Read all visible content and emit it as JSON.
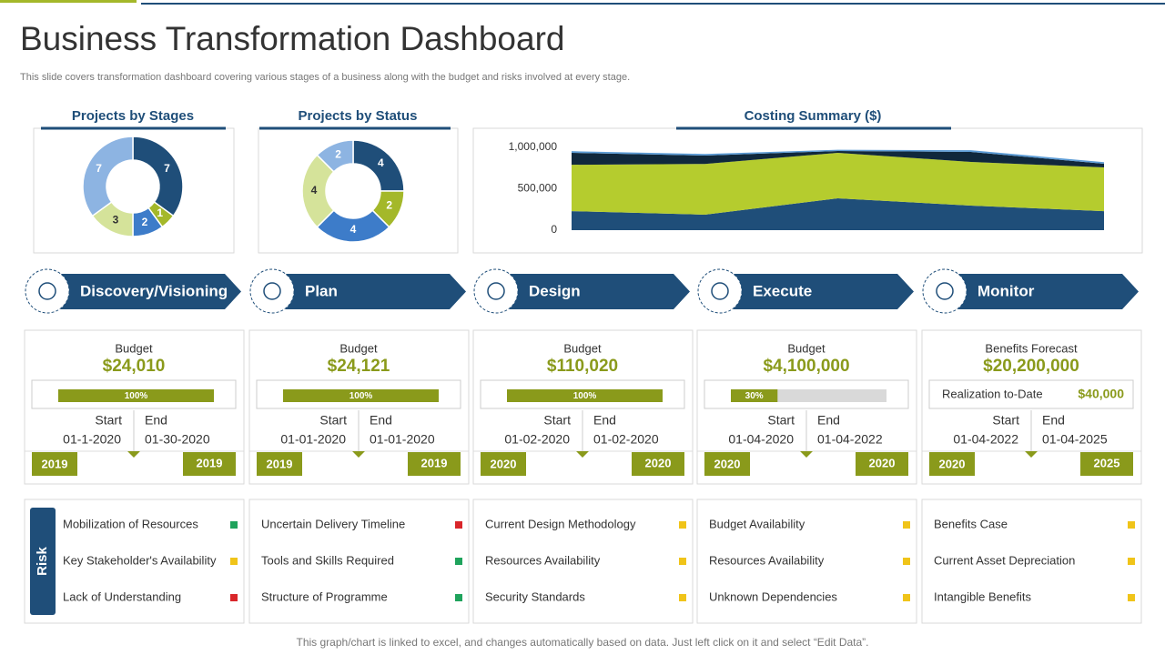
{
  "header": {
    "title": "Business Transformation Dashboard",
    "subtitle": "This slide covers transformation dashboard covering various stages of a business along with the budget and risks involved at every  stage."
  },
  "chart_data": [
    {
      "type": "donut",
      "title": "Projects by Stages",
      "values": [
        7,
        1,
        2,
        3,
        7
      ],
      "colors": [
        "#1f4e79",
        "#a4b82a",
        "#3d7cc9",
        "#d5e39a",
        "#8db4e2"
      ]
    },
    {
      "type": "donut",
      "title": "Projects by Status",
      "values": [
        4,
        2,
        4,
        4,
        2
      ],
      "colors": [
        "#1f4e79",
        "#a4b82a",
        "#3d7cc9",
        "#d5e39a",
        "#8db4e2"
      ]
    },
    {
      "type": "area",
      "title": "Costing Summary ($)",
      "stacked": true,
      "ylim": [
        0,
        1000000
      ],
      "yticks": [
        0,
        {
          "value": 500000,
          "label": "500,000"
        },
        {
          "value": 1000000,
          "label": "1,000,000"
        }
      ],
      "series": [
        {
          "color": "#1f4e79",
          "values": [
            230000,
            187000,
            385000,
            297000,
            230000
          ]
        },
        {
          "color": "#b5cc2e",
          "values": [
            560000,
            613000,
            549000,
            527000,
            528000
          ]
        },
        {
          "color": "#10283c",
          "values": [
            144000,
            101000,
            22000,
            121000,
            44000
          ]
        },
        {
          "color": "#5b9bd5",
          "values": [
            20000,
            20000,
            15000,
            20000,
            20000
          ]
        }
      ]
    }
  ],
  "stages": [
    {
      "name": "Discovery/Visioning",
      "budget_label": "Budget",
      "budget": "$24,010",
      "progress": 100,
      "progress_label": "100%",
      "start_label": "Start",
      "end_label": "End",
      "start": "01-1-2020",
      "end": "01-30-2020",
      "start_year": "2019",
      "end_year": "2019"
    },
    {
      "name": "Plan",
      "budget_label": "Budget",
      "budget": "$24,121",
      "progress": 100,
      "progress_label": "100%",
      "start_label": "Start",
      "end_label": "End",
      "start": "01-01-2020",
      "end": "01-01-2020",
      "start_year": "2019",
      "end_year": "2019"
    },
    {
      "name": "Design",
      "budget_label": "Budget",
      "budget": "$110,020",
      "progress": 100,
      "progress_label": "100%",
      "start_label": "Start",
      "end_label": "End",
      "start": "01-02-2020",
      "end": "01-02-2020",
      "start_year": "2020",
      "end_year": "2020"
    },
    {
      "name": "Execute",
      "budget_label": "Budget",
      "budget": "$4,100,000",
      "progress": 30,
      "progress_label": "30%",
      "start_label": "Start",
      "end_label": "End",
      "start": "01-04-2020",
      "end": "01-04-2022",
      "start_year": "2020",
      "end_year": "2020"
    },
    {
      "name": "Monitor",
      "budget_label": "Benefits Forecast",
      "budget": "$20,200,000",
      "realization_label": "Realization to-Date",
      "realization": "$40,000",
      "start_label": "Start",
      "end_label": "End",
      "start": "01-04-2022",
      "end": "01-04-2025",
      "start_year": "2020",
      "end_year": "2025"
    }
  ],
  "risk": {
    "label": "Risk",
    "columns": [
      [
        {
          "text": "Mobilization of Resources",
          "color": "#1fa35c"
        },
        {
          "text": "Key Stakeholder's Availability",
          "color": "#f0c419"
        },
        {
          "text": "Lack of Understanding",
          "color": "#d9262a"
        }
      ],
      [
        {
          "text": "Uncertain Delivery  Timeline",
          "color": "#d9262a"
        },
        {
          "text": "Tools and Skills Required",
          "color": "#1fa35c"
        },
        {
          "text": "Structure of Programme",
          "color": "#1fa35c"
        }
      ],
      [
        {
          "text": "Current Design Methodology",
          "color": "#f0c419"
        },
        {
          "text": "Resources Availability",
          "color": "#f0c419"
        },
        {
          "text": "Security Standards",
          "color": "#f0c419"
        }
      ],
      [
        {
          "text": "Budget Availability",
          "color": "#f0c419"
        },
        {
          "text": "Resources Availability",
          "color": "#f0c419"
        },
        {
          "text": "Unknown Dependencies",
          "color": "#f0c419"
        }
      ],
      [
        {
          "text": "Benefits Case",
          "color": "#f0c419"
        },
        {
          "text": "Current  Asset Depreciation",
          "color": "#f0c419"
        },
        {
          "text": "Intangible Benefits",
          "color": "#f0c419"
        }
      ]
    ]
  },
  "footer": "This graph/chart is linked to excel, and changes automatically based on data. Just left click on it and select “Edit Data”."
}
